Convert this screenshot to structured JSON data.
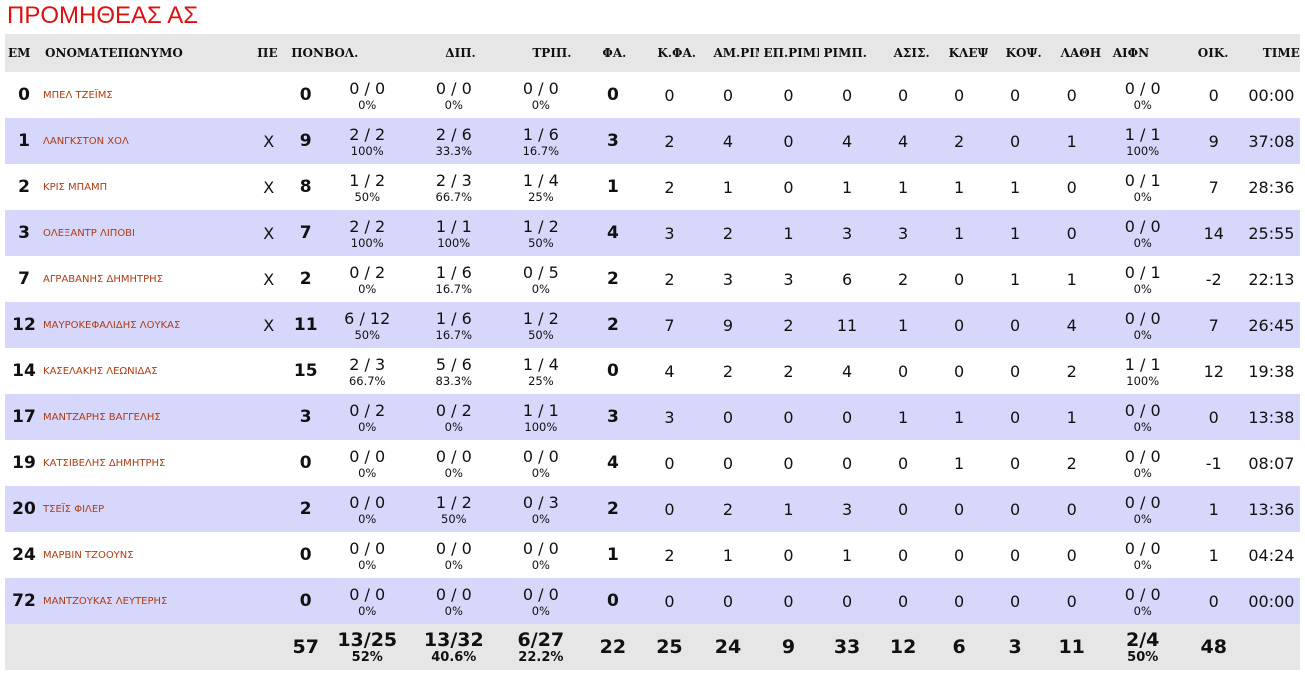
{
  "team_name": "ΠΡΟΜΗΘΕΑΣ ΑΣ",
  "headers": [
    "ΕΜ",
    "ΟΝΟΜΑΤΕΠΩΝΥΜΟ",
    "ΠΕ",
    "ΠΟΝ.",
    "ΒΟΛ.",
    "ΔΙΠ.",
    "ΤΡΙΠ.",
    "ΦΑ.",
    "Κ.ΦΑ.",
    "ΑΜ.ΡΙΜΠ.",
    "ΕΠ.ΡΙΜΠ.",
    "ΡΙΜΠ.",
    "ΑΣΙΣ.",
    "ΚΛΕΨ.",
    "ΚΟΨ.",
    "ΛΑΘΗ",
    "ΑΙΦΝ",
    "ΟΙΚ.",
    "TIME"
  ],
  "players": [
    {
      "num": "0",
      "name": "ΜΠΕΛ ΤΖΕΪΜΣ",
      "starter": "",
      "pts": "0",
      "fg": "0 / 0",
      "fg_pct": "0%",
      "two": "0 / 0",
      "two_pct": "0%",
      "three": "0 / 0",
      "three_pct": "0%",
      "ft": "0",
      "pf": "0",
      "oreb": "0",
      "dreb": "0",
      "reb": "0",
      "ast": "0",
      "stl": "0",
      "blk": "0",
      "tov": "0",
      "aifn": "0 / 0",
      "aifn_pct": "0%",
      "eff": "0",
      "time": "00:00"
    },
    {
      "num": "1",
      "name": "ΛΑΝΓΚΣΤΟΝ ΧΟΛ",
      "starter": "X",
      "pts": "9",
      "fg": "2 / 2",
      "fg_pct": "100%",
      "two": "2 / 6",
      "two_pct": "33.3%",
      "three": "1 / 6",
      "three_pct": "16.7%",
      "ft": "3",
      "pf": "2",
      "oreb": "4",
      "dreb": "0",
      "reb": "4",
      "ast": "4",
      "stl": "2",
      "blk": "0",
      "tov": "1",
      "aifn": "1 / 1",
      "aifn_pct": "100%",
      "eff": "9",
      "time": "37:08"
    },
    {
      "num": "2",
      "name": "ΚΡΙΣ ΜΠΑΜΠ",
      "starter": "X",
      "pts": "8",
      "fg": "1 / 2",
      "fg_pct": "50%",
      "two": "2 / 3",
      "two_pct": "66.7%",
      "three": "1 / 4",
      "three_pct": "25%",
      "ft": "1",
      "pf": "2",
      "oreb": "1",
      "dreb": "0",
      "reb": "1",
      "ast": "1",
      "stl": "1",
      "blk": "1",
      "tov": "0",
      "aifn": "0 / 1",
      "aifn_pct": "0%",
      "eff": "7",
      "time": "28:36"
    },
    {
      "num": "3",
      "name": "ΟΛΕΞΑΝΤΡ ΛΙΠΟΒΙ",
      "starter": "X",
      "pts": "7",
      "fg": "2 / 2",
      "fg_pct": "100%",
      "two": "1 / 1",
      "two_pct": "100%",
      "three": "1 / 2",
      "three_pct": "50%",
      "ft": "4",
      "pf": "3",
      "oreb": "2",
      "dreb": "1",
      "reb": "3",
      "ast": "3",
      "stl": "1",
      "blk": "1",
      "tov": "0",
      "aifn": "0 / 0",
      "aifn_pct": "0%",
      "eff": "14",
      "time": "25:55"
    },
    {
      "num": "7",
      "name": "ΑΓΡΑΒΑΝΗΣ ΔΗΜΗΤΡΗΣ",
      "starter": "X",
      "pts": "2",
      "fg": "0 / 2",
      "fg_pct": "0%",
      "two": "1 / 6",
      "two_pct": "16.7%",
      "three": "0 / 5",
      "three_pct": "0%",
      "ft": "2",
      "pf": "2",
      "oreb": "3",
      "dreb": "3",
      "reb": "6",
      "ast": "2",
      "stl": "0",
      "blk": "1",
      "tov": "1",
      "aifn": "0 / 1",
      "aifn_pct": "0%",
      "eff": "-2",
      "time": "22:13"
    },
    {
      "num": "12",
      "name": "ΜΑΥΡΟΚΕΦΑΛΙΔΗΣ ΛΟΥΚΑΣ",
      "starter": "X",
      "pts": "11",
      "fg": "6 / 12",
      "fg_pct": "50%",
      "two": "1 / 6",
      "two_pct": "16.7%",
      "three": "1 / 2",
      "three_pct": "50%",
      "ft": "2",
      "pf": "7",
      "oreb": "9",
      "dreb": "2",
      "reb": "11",
      "ast": "1",
      "stl": "0",
      "blk": "0",
      "tov": "4",
      "aifn": "0 / 0",
      "aifn_pct": "0%",
      "eff": "7",
      "time": "26:45"
    },
    {
      "num": "14",
      "name": "ΚΑΣΕΛΑΚΗΣ ΛΕΩΝΙΔΑΣ",
      "starter": "",
      "pts": "15",
      "fg": "2 / 3",
      "fg_pct": "66.7%",
      "two": "5 / 6",
      "two_pct": "83.3%",
      "three": "1 / 4",
      "three_pct": "25%",
      "ft": "0",
      "pf": "4",
      "oreb": "2",
      "dreb": "2",
      "reb": "4",
      "ast": "0",
      "stl": "0",
      "blk": "0",
      "tov": "2",
      "aifn": "1 / 1",
      "aifn_pct": "100%",
      "eff": "12",
      "time": "19:38"
    },
    {
      "num": "17",
      "name": "ΜΑΝΤΖΑΡΗΣ ΒΑΓΓΕΛΗΣ",
      "starter": "",
      "pts": "3",
      "fg": "0 / 2",
      "fg_pct": "0%",
      "two": "0 / 2",
      "two_pct": "0%",
      "three": "1 / 1",
      "three_pct": "100%",
      "ft": "3",
      "pf": "3",
      "oreb": "0",
      "dreb": "0",
      "reb": "0",
      "ast": "1",
      "stl": "1",
      "blk": "0",
      "tov": "1",
      "aifn": "0 / 0",
      "aifn_pct": "0%",
      "eff": "0",
      "time": "13:38"
    },
    {
      "num": "19",
      "name": "ΚΑΤΣΙΒΕΛΗΣ ΔΗΜΗΤΡΗΣ",
      "starter": "",
      "pts": "0",
      "fg": "0 / 0",
      "fg_pct": "0%",
      "two": "0 / 0",
      "two_pct": "0%",
      "three": "0 / 0",
      "three_pct": "0%",
      "ft": "4",
      "pf": "0",
      "oreb": "0",
      "dreb": "0",
      "reb": "0",
      "ast": "0",
      "stl": "1",
      "blk": "0",
      "tov": "2",
      "aifn": "0 / 0",
      "aifn_pct": "0%",
      "eff": "-1",
      "time": "08:07"
    },
    {
      "num": "20",
      "name": "ΤΣΕΪΣ ΦΙΛΕΡ",
      "starter": "",
      "pts": "2",
      "fg": "0 / 0",
      "fg_pct": "0%",
      "two": "1 / 2",
      "two_pct": "50%",
      "three": "0 / 3",
      "three_pct": "0%",
      "ft": "2",
      "pf": "0",
      "oreb": "2",
      "dreb": "1",
      "reb": "3",
      "ast": "0",
      "stl": "0",
      "blk": "0",
      "tov": "0",
      "aifn": "0 / 0",
      "aifn_pct": "0%",
      "eff": "1",
      "time": "13:36"
    },
    {
      "num": "24",
      "name": "ΜΑΡΒΙΝ ΤΖΟΟΥΝΣ",
      "starter": "",
      "pts": "0",
      "fg": "0 / 0",
      "fg_pct": "0%",
      "two": "0 / 0",
      "two_pct": "0%",
      "three": "0 / 0",
      "three_pct": "0%",
      "ft": "1",
      "pf": "2",
      "oreb": "1",
      "dreb": "0",
      "reb": "1",
      "ast": "0",
      "stl": "0",
      "blk": "0",
      "tov": "0",
      "aifn": "0 / 0",
      "aifn_pct": "0%",
      "eff": "1",
      "time": "04:24"
    },
    {
      "num": "72",
      "name": "ΜΑΝΤΖΟΥΚΑΣ ΛΕΥΤΕΡΗΣ",
      "starter": "",
      "pts": "0",
      "fg": "0 / 0",
      "fg_pct": "0%",
      "two": "0 / 0",
      "two_pct": "0%",
      "three": "0 / 0",
      "three_pct": "0%",
      "ft": "0",
      "pf": "0",
      "oreb": "0",
      "dreb": "0",
      "reb": "0",
      "ast": "0",
      "stl": "0",
      "blk": "0",
      "tov": "0",
      "aifn": "0 / 0",
      "aifn_pct": "0%",
      "eff": "0",
      "time": "00:00"
    }
  ],
  "totals": {
    "pts": "57",
    "fg": "13/25",
    "fg_pct": "52%",
    "two": "13/32",
    "two_pct": "40.6%",
    "three": "6/27",
    "three_pct": "22.2%",
    "ft": "22",
    "pf": "25",
    "oreb": "24",
    "dreb": "9",
    "reb": "33",
    "ast": "12",
    "stl": "6",
    "blk": "3",
    "tov": "11",
    "aifn": "2/4",
    "aifn_pct": "50%",
    "eff": "48"
  }
}
